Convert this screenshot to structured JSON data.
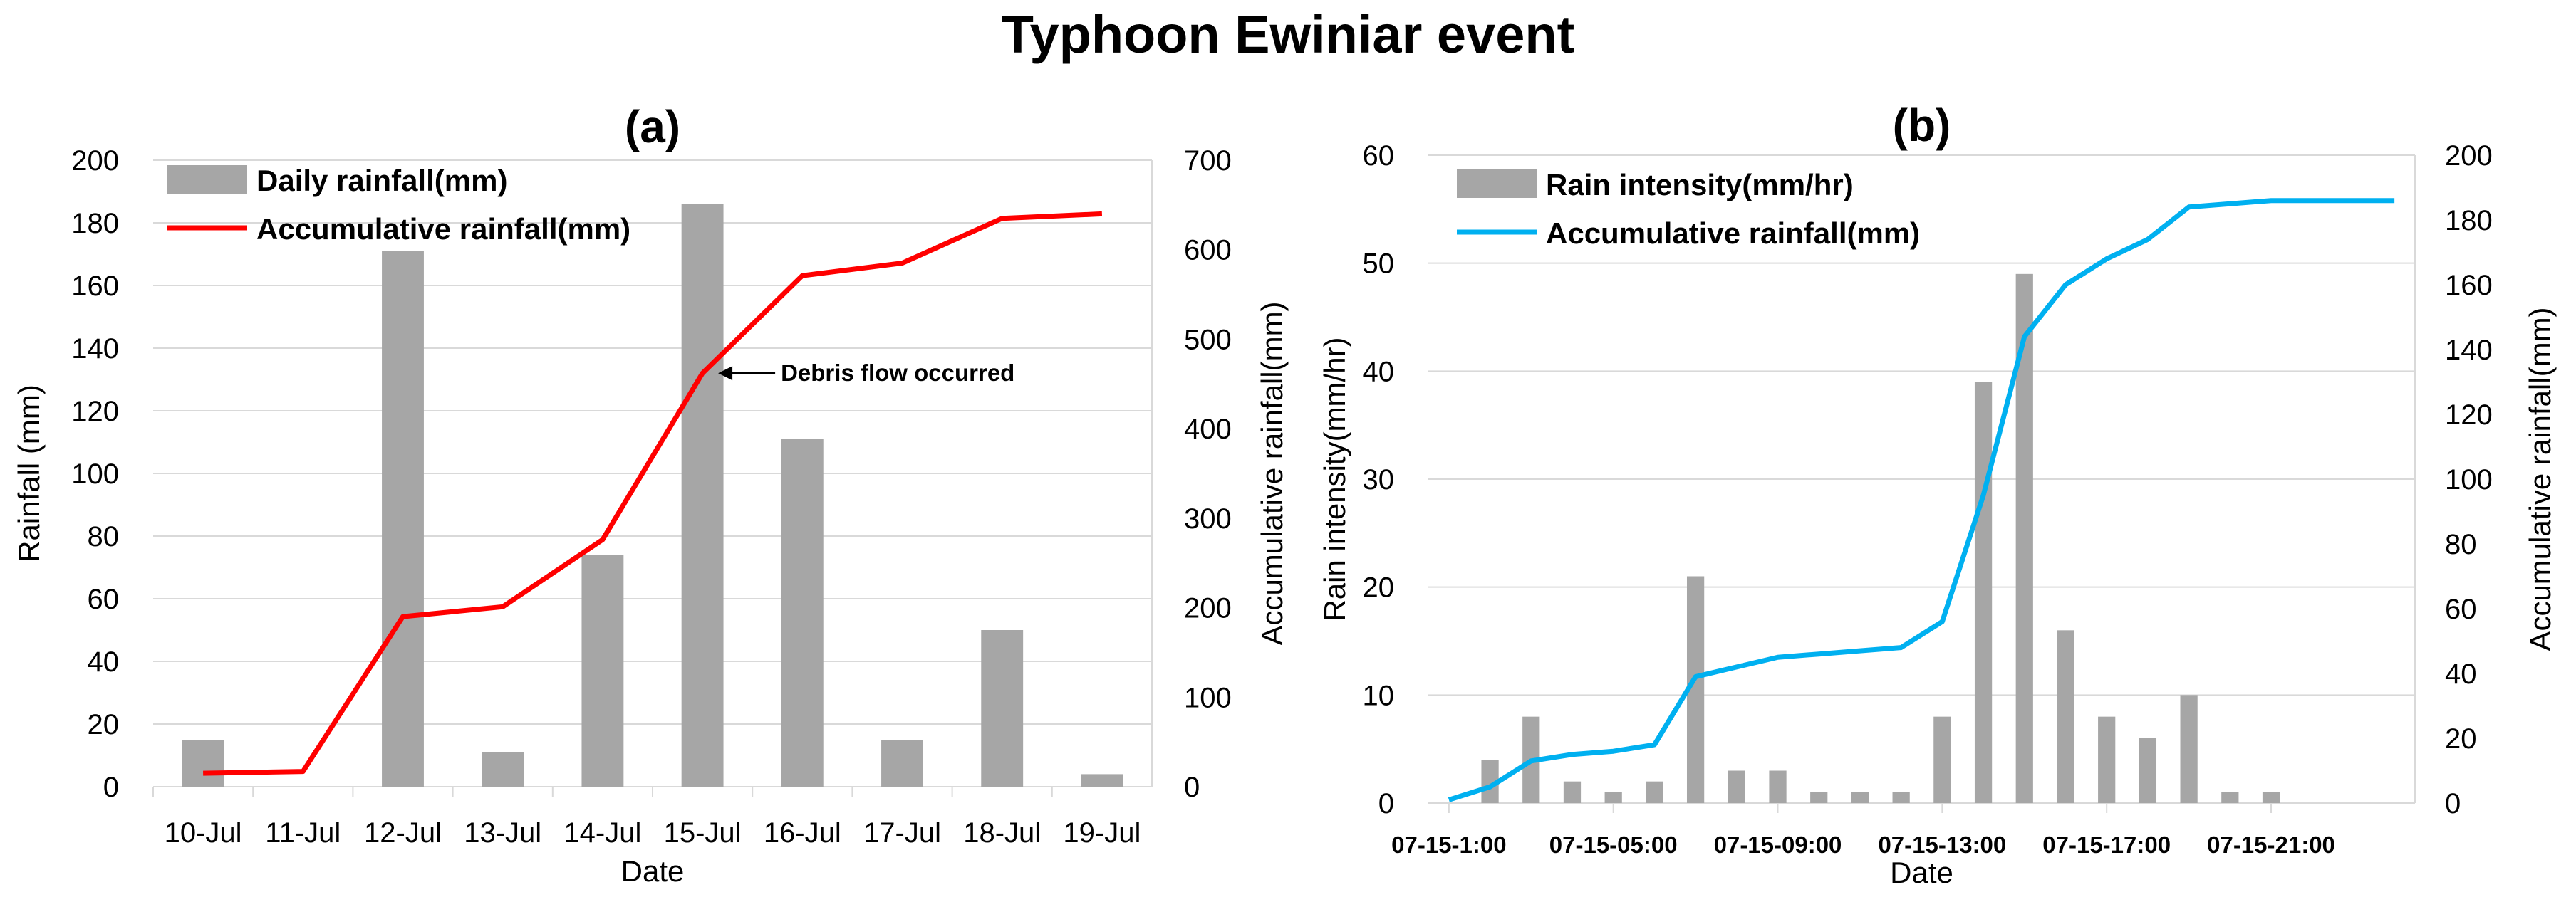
{
  "main_title": "Typhoon Ewiniar event",
  "chart_data": [
    {
      "type": "bar+line",
      "panel": "(a)",
      "title": "(a)",
      "xlabel": "Date",
      "ylabel": "Rainfall (mm)",
      "y2label": "Accumulative rainfall(mm)",
      "categories": [
        "10-Jul",
        "11-Jul",
        "12-Jul",
        "13-Jul",
        "14-Jul",
        "15-Jul",
        "16-Jul",
        "17-Jul",
        "18-Jul",
        "19-Jul"
      ],
      "ylim": [
        0,
        200
      ],
      "y_ticks": [
        "0",
        "20",
        "40",
        "60",
        "80",
        "100",
        "120",
        "140",
        "160",
        "180",
        "200"
      ],
      "y2lim": [
        0,
        700
      ],
      "y2_ticks": [
        "0",
        "100",
        "200",
        "300",
        "400",
        "500",
        "600",
        "700"
      ],
      "grid": true,
      "legend_position": "top-left",
      "series": [
        {
          "name": "Daily rainfall(mm)",
          "kind": "bar",
          "axis": "left",
          "color": "#a6a6a6",
          "values": [
            15,
            0,
            171,
            11,
            74,
            186,
            111,
            15,
            50,
            4
          ]
        },
        {
          "name": "Accumulative rainfall(mm)",
          "kind": "line",
          "axis": "right",
          "color": "#ff0000",
          "values": [
            15,
            17,
            190,
            201,
            276,
            462,
            571,
            585,
            635,
            640
          ]
        }
      ],
      "annotation": {
        "text": "Debris flow occurred",
        "category": "15-Jul",
        "value": 462
      }
    },
    {
      "type": "bar+line",
      "panel": "(b)",
      "title": "(b)",
      "xlabel": "Date",
      "ylabel": "Rain intensity(mm/hr)",
      "y2label": "Accumulative rainfall(mm)",
      "x_tick_labels": [
        "07-15-1:00",
        "07-15-05:00",
        "07-15-09:00",
        "07-15-13:00",
        "07-15-17:00",
        "07-15-21:00"
      ],
      "ylim": [
        0,
        60
      ],
      "y_ticks": [
        "0",
        "10",
        "20",
        "30",
        "40",
        "50",
        "60"
      ],
      "y2lim": [
        0,
        200
      ],
      "y2_ticks": [
        "0",
        "20",
        "40",
        "60",
        "80",
        "100",
        "120",
        "140",
        "160",
        "180",
        "200"
      ],
      "grid": true,
      "legend_position": "top-left",
      "series": [
        {
          "name": "Rain intensity(mm/hr)",
          "kind": "bar",
          "axis": "left",
          "color": "#a6a6a6",
          "values": [
            0,
            4,
            8,
            2,
            1,
            2,
            21,
            3,
            3,
            1,
            1,
            1,
            8,
            39,
            49,
            16,
            8,
            6,
            10,
            1,
            1,
            0,
            0,
            0
          ]
        },
        {
          "name": "Accumulative rainfall(mm)",
          "kind": "line",
          "axis": "right",
          "color": "#00b0f0",
          "values": [
            1,
            5,
            13,
            15,
            16,
            18,
            39,
            42,
            45,
            46,
            47,
            48,
            56,
            95,
            144,
            160,
            168,
            174,
            184,
            185,
            186,
            186,
            186,
            186
          ]
        }
      ]
    }
  ]
}
